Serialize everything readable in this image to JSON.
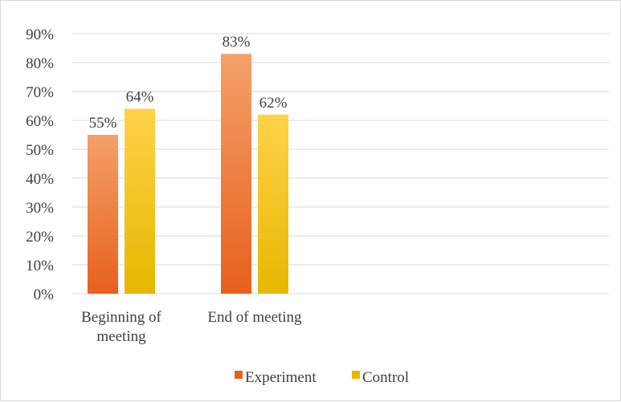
{
  "chart_data": {
    "type": "bar",
    "categories": [
      "Beginning of meeting",
      "End of meeting"
    ],
    "category_lines": [
      [
        "Beginning of",
        "meeting"
      ],
      [
        "End of meeting"
      ]
    ],
    "series": [
      {
        "name": "Experiment",
        "values": [
          55,
          83
        ],
        "labels": [
          "55%",
          "83%"
        ],
        "color_top": "#F4A06A",
        "color_bottom": "#E8601C"
      },
      {
        "name": "Control",
        "values": [
          64,
          62
        ],
        "labels": [
          "64%",
          "62%"
        ],
        "color_top": "#FFD24A",
        "color_bottom": "#E6B800"
      }
    ],
    "ylim": [
      0,
      90
    ],
    "yticks": [
      "0%",
      "10%",
      "20%",
      "30%",
      "40%",
      "50%",
      "60%",
      "70%",
      "80%",
      "90%"
    ],
    "grid": true,
    "legend": "bottom-center"
  }
}
